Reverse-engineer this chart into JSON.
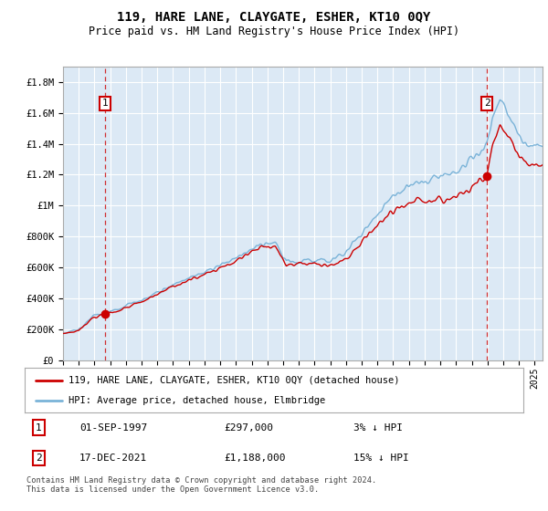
{
  "title": "119, HARE LANE, CLAYGATE, ESHER, KT10 0QY",
  "subtitle": "Price paid vs. HM Land Registry's House Price Index (HPI)",
  "ylabel_ticks": [
    "£0",
    "£200K",
    "£400K",
    "£600K",
    "£800K",
    "£1M",
    "£1.2M",
    "£1.4M",
    "£1.6M",
    "£1.8M"
  ],
  "ytick_values": [
    0,
    200000,
    400000,
    600000,
    800000,
    1000000,
    1200000,
    1400000,
    1600000,
    1800000
  ],
  "ylim": [
    0,
    1900000
  ],
  "xlim_start": 1995.0,
  "xlim_end": 2025.5,
  "background_color": "#dce9f5",
  "grid_color": "#ffffff",
  "hpi_line_color": "#7ab3d8",
  "price_line_color": "#cc0000",
  "sale1_x": 1997.67,
  "sale1_y": 297000,
  "sale1_label": "1",
  "sale1_date": "01-SEP-1997",
  "sale1_price": "£297,000",
  "sale1_pct": "3% ↓ HPI",
  "sale2_x": 2021.96,
  "sale2_y": 1188000,
  "sale2_label": "2",
  "sale2_date": "17-DEC-2021",
  "sale2_price": "£1,188,000",
  "sale2_pct": "15% ↓ HPI",
  "legend_line1": "119, HARE LANE, CLAYGATE, ESHER, KT10 0QY (detached house)",
  "legend_line2": "HPI: Average price, detached house, Elmbridge",
  "footer": "Contains HM Land Registry data © Crown copyright and database right 2024.\nThis data is licensed under the Open Government Licence v3.0.",
  "xtick_years": [
    1995,
    1996,
    1997,
    1998,
    1999,
    2000,
    2001,
    2002,
    2003,
    2004,
    2005,
    2006,
    2007,
    2008,
    2009,
    2010,
    2011,
    2012,
    2013,
    2014,
    2015,
    2016,
    2017,
    2018,
    2019,
    2020,
    2021,
    2022,
    2023,
    2024,
    2025
  ]
}
